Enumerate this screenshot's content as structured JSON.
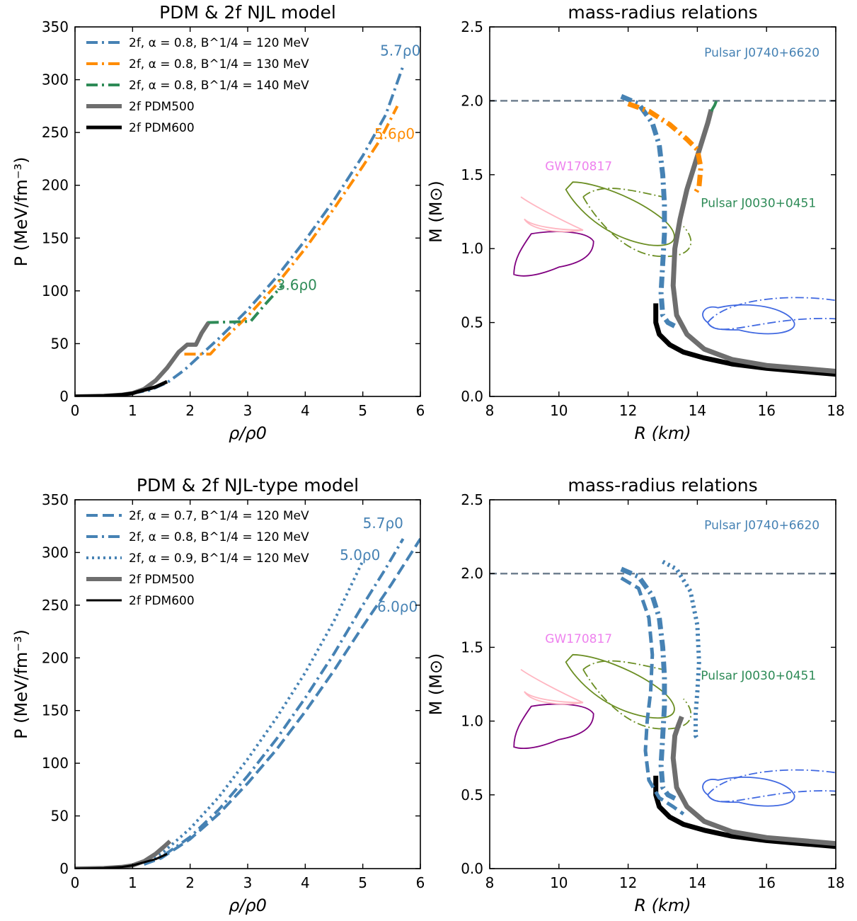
{
  "chart_data": [
    {
      "type": "line",
      "title": "PDM & 2f NJL model",
      "xlabel": "ρ/ρ0",
      "ylabel": "P (MeV/fm⁻³)",
      "xlim": [
        0,
        6
      ],
      "ylim": [
        0,
        350
      ],
      "xticks": [
        0,
        1,
        2,
        3,
        4,
        5,
        6
      ],
      "yticks": [
        0,
        50,
        100,
        150,
        200,
        250,
        300,
        350
      ],
      "legend_position": "top-left",
      "series": [
        {
          "name": "2f, α = 0.8, B^1/4 = 120 MeV",
          "color": "#4682b4",
          "style": "dashdot",
          "width": 4,
          "x": [
            1.0,
            1.3,
            1.6,
            1.9,
            2.2,
            2.5,
            3.0,
            3.5,
            4.0,
            4.5,
            5.0,
            5.4,
            5.7
          ],
          "y": [
            3,
            6,
            13,
            25,
            40,
            55,
            82,
            113,
            148,
            186,
            228,
            267,
            313
          ]
        },
        {
          "name": "2f, α = 0.8, B^1/4 = 130 MeV",
          "color": "#ff8c00",
          "style": "dashdot",
          "width": 4,
          "x": [
            1.9,
            2.35,
            2.6,
            3.0,
            3.5,
            4.0,
            4.5,
            5.0,
            5.3,
            5.6
          ],
          "y": [
            40,
            40,
            55,
            76,
            106,
            140,
            178,
            218,
            243,
            275
          ]
        },
        {
          "name": "2f, α = 0.8, B^1/4 = 140 MeV",
          "color": "#2e8b57",
          "style": "dashdot",
          "width": 4,
          "x": [
            2.3,
            3.05,
            3.3,
            3.6
          ],
          "y": [
            70,
            71,
            87,
            105
          ]
        },
        {
          "name": "2f PDM500",
          "color": "#6e6e6e",
          "style": "solid",
          "width": 6,
          "x": [
            0,
            0.5,
            0.8,
            1.0,
            1.2,
            1.4,
            1.6,
            1.8,
            1.95,
            2.1,
            2.2,
            2.32
          ],
          "y": [
            0,
            0.5,
            1.5,
            3,
            7,
            15,
            27,
            42,
            49,
            49,
            60,
            70
          ]
        },
        {
          "name": "2f PDM600",
          "color": "#000000",
          "style": "solid",
          "width": 5,
          "x": [
            0,
            0.5,
            0.8,
            1.0,
            1.2,
            1.4,
            1.6
          ],
          "y": [
            0,
            0.5,
            1.5,
            3,
            6,
            9,
            14
          ]
        }
      ],
      "annotations": [
        {
          "text": "5.7ρ0",
          "color": "#4682b4",
          "x": 5.3,
          "y": 323
        },
        {
          "text": "5.6ρ0",
          "color": "#ff8c00",
          "x": 5.2,
          "y": 244
        },
        {
          "text": "3.6ρ0",
          "color": "#2e8b57",
          "x": 3.5,
          "y": 101
        }
      ]
    },
    {
      "type": "line",
      "title": "mass-radius relations",
      "xlabel": "R (km)",
      "ylabel": "M (M⊙)",
      "xlim": [
        8,
        18
      ],
      "ylim": [
        0,
        2.5
      ],
      "xticks": [
        8,
        10,
        12,
        14,
        16,
        18
      ],
      "yticks": [
        0.0,
        0.5,
        1.0,
        1.5,
        2.0,
        2.5
      ],
      "reference_line": {
        "y": 2.0,
        "color": "#708090",
        "style": "dashed"
      },
      "series": [
        {
          "name": "2f PDM600",
          "color": "#000000",
          "style": "solid",
          "width": 7,
          "x": [
            12.8,
            12.8,
            12.9,
            13.2,
            13.6,
            14.2,
            15.0,
            16.0,
            17.0,
            18.0
          ],
          "y": [
            0.63,
            0.5,
            0.42,
            0.35,
            0.3,
            0.26,
            0.22,
            0.19,
            0.17,
            0.15
          ]
        },
        {
          "name": "2f PDM500",
          "color": "#6e6e6e",
          "style": "solid",
          "width": 7,
          "x": [
            18.0,
            17.0,
            16.0,
            15.0,
            14.2,
            13.7,
            13.4,
            13.3,
            13.35,
            13.5,
            13.7,
            13.9,
            14.1,
            14.3,
            14.4
          ],
          "y": [
            0.17,
            0.19,
            0.21,
            0.25,
            0.32,
            0.42,
            0.55,
            0.75,
            1.0,
            1.2,
            1.4,
            1.55,
            1.7,
            1.85,
            1.94
          ]
        },
        {
          "name": "2f, α = 0.8, B^1/4 = 120 MeV",
          "color": "#4682b4",
          "style": "dashdot",
          "width": 7,
          "x": [
            11.8,
            12.3,
            12.7,
            12.9,
            13.0,
            13.05,
            13.05,
            13.0,
            12.95,
            13.0,
            13.15,
            13.4
          ],
          "y": [
            2.03,
            1.98,
            1.85,
            1.7,
            1.5,
            1.3,
            1.1,
            0.9,
            0.7,
            0.55,
            0.5,
            0.47
          ]
        },
        {
          "name": "2f, α = 0.8, B^1/4 = 130 MeV",
          "color": "#ff8c00",
          "style": "dashdot",
          "width": 7,
          "x": [
            12.0,
            12.6,
            13.2,
            13.7,
            14.0,
            14.1,
            14.05,
            13.95
          ],
          "y": [
            1.98,
            1.93,
            1.84,
            1.74,
            1.67,
            1.55,
            1.42,
            1.38
          ]
        },
        {
          "name": "2f, α = 0.8, B^1/4 = 140 MeV",
          "color": "#2e8b57",
          "style": "dashdot",
          "width": 4,
          "x": [
            14.4,
            14.5,
            14.55,
            14.5
          ],
          "y": [
            1.93,
            1.97,
            2.0,
            2.0
          ]
        }
      ],
      "annotations": [
        {
          "text": "Pulsar J0740+6620",
          "color": "#4682b4",
          "x": 14.2,
          "y": 2.3
        },
        {
          "text": "GW170817",
          "color": "#ee82ee",
          "x": 9.6,
          "y": 1.53
        },
        {
          "text": "Pulsar J0030+0451",
          "color": "#2e8b57",
          "x": 14.1,
          "y": 1.28
        }
      ],
      "contours": [
        {
          "name": "Pulsar J0740+6620",
          "color": "#4169e1",
          "style": "solid"
        },
        {
          "name": "Pulsar J0740+6620",
          "color": "#4169e1",
          "style": "dashdot"
        },
        {
          "name": "GW170817",
          "color": "#800080",
          "style": "solid"
        },
        {
          "name": "GW170817",
          "color": "#ffb6c1",
          "style": "solid"
        },
        {
          "name": "Pulsar J0030+0451",
          "color": "#6b8e23",
          "style": "solid"
        },
        {
          "name": "Pulsar J0030+0451",
          "color": "#6b8e23",
          "style": "dashdot"
        }
      ]
    },
    {
      "type": "line",
      "title": "PDM & 2f NJL-type model",
      "xlabel": "ρ/ρ0",
      "ylabel": "P (MeV/fm⁻³)",
      "xlim": [
        0,
        6
      ],
      "ylim": [
        0,
        350
      ],
      "xticks": [
        0,
        1,
        2,
        3,
        4,
        5,
        6
      ],
      "yticks": [
        0,
        50,
        100,
        150,
        200,
        250,
        300,
        350
      ],
      "legend_position": "top-left",
      "series": [
        {
          "name": "2f, α = 0.7, B^1/4 = 120 MeV",
          "color": "#4682b4",
          "style": "dashed",
          "width": 4,
          "x": [
            1.2,
            1.5,
            2.0,
            2.5,
            3.0,
            3.5,
            4.0,
            4.5,
            5.0,
            5.5,
            6.0
          ],
          "y": [
            4,
            10,
            28,
            52,
            81,
            113,
            149,
            188,
            230,
            270,
            313
          ]
        },
        {
          "name": "2f, α = 0.8, B^1/4 = 120 MeV",
          "color": "#4682b4",
          "style": "dashdot",
          "width": 4,
          "x": [
            1.2,
            1.5,
            2.0,
            2.5,
            3.0,
            3.5,
            4.0,
            4.5,
            5.0,
            5.4,
            5.7
          ],
          "y": [
            4,
            11,
            30,
            56,
            88,
            123,
            162,
            204,
            250,
            285,
            313
          ]
        },
        {
          "name": "2f, α = 0.9, B^1/4 = 120 MeV",
          "color": "#4682b4",
          "style": "dotted",
          "width": 4,
          "x": [
            1.2,
            1.5,
            2.0,
            2.5,
            3.0,
            3.5,
            4.0,
            4.5,
            5.0
          ],
          "y": [
            5,
            14,
            38,
            68,
            104,
            143,
            186,
            235,
            292
          ]
        },
        {
          "name": "2f PDM500",
          "color": "#6e6e6e",
          "style": "solid",
          "width": 6,
          "x": [
            0,
            0.5,
            0.8,
            1.0,
            1.2,
            1.4,
            1.55,
            1.65
          ],
          "y": [
            0,
            0.5,
            1.5,
            3,
            7,
            14,
            21,
            26
          ]
        },
        {
          "name": "2f PDM600",
          "color": "#000000",
          "style": "solid",
          "width": 3,
          "x": [
            0,
            0.5,
            0.8,
            1.0,
            1.2,
            1.4,
            1.6
          ],
          "y": [
            0,
            0.5,
            1.5,
            3,
            6,
            9,
            14
          ]
        }
      ],
      "annotations": [
        {
          "text": "5.7ρ0",
          "color": "#4682b4",
          "x": 5.0,
          "y": 323
        },
        {
          "text": "5.0ρ0",
          "color": "#4682b4",
          "x": 4.6,
          "y": 293
        },
        {
          "text": "6.0ρ0",
          "color": "#4682b4",
          "x": 5.25,
          "y": 244
        }
      ]
    },
    {
      "type": "line",
      "title": "mass-radius relations",
      "xlabel": "R (km)",
      "ylabel": "M (M⊙)",
      "xlim": [
        8,
        18
      ],
      "ylim": [
        0,
        2.5
      ],
      "xticks": [
        8,
        10,
        12,
        14,
        16,
        18
      ],
      "yticks": [
        0.0,
        0.5,
        1.0,
        1.5,
        2.0,
        2.5
      ],
      "reference_line": {
        "y": 2.0,
        "color": "#708090",
        "style": "dashed"
      },
      "series": [
        {
          "name": "2f PDM600",
          "color": "#000000",
          "style": "solid",
          "width": 7,
          "x": [
            12.8,
            12.8,
            12.9,
            13.2,
            13.6,
            14.2,
            15.0,
            16.0,
            17.0,
            18.0
          ],
          "y": [
            0.63,
            0.5,
            0.42,
            0.35,
            0.3,
            0.26,
            0.22,
            0.19,
            0.17,
            0.15
          ]
        },
        {
          "name": "2f PDM500",
          "color": "#6e6e6e",
          "style": "solid",
          "width": 7,
          "x": [
            18.0,
            17.0,
            16.0,
            15.0,
            14.2,
            13.7,
            13.4,
            13.3,
            13.35,
            13.45,
            13.55
          ],
          "y": [
            0.17,
            0.19,
            0.21,
            0.25,
            0.32,
            0.42,
            0.55,
            0.75,
            0.9,
            0.97,
            1.03
          ]
        },
        {
          "name": "2f, α = 0.7, B^1/4 = 120 MeV",
          "color": "#4682b4",
          "style": "dashed",
          "width": 5,
          "x": [
            11.8,
            12.3,
            12.6,
            12.7,
            12.65,
            12.55,
            12.5,
            12.6,
            12.9,
            13.3,
            13.6
          ],
          "y": [
            1.97,
            1.9,
            1.7,
            1.45,
            1.2,
            1.0,
            0.8,
            0.6,
            0.48,
            0.42,
            0.37
          ]
        },
        {
          "name": "2f, α = 0.8, B^1/4 = 120 MeV",
          "color": "#4682b4",
          "style": "dashdot",
          "width": 7,
          "x": [
            11.8,
            12.3,
            12.7,
            12.9,
            13.0,
            13.05,
            13.05,
            13.0,
            12.95,
            13.0,
            13.15,
            13.4
          ],
          "y": [
            2.03,
            1.98,
            1.85,
            1.7,
            1.5,
            1.3,
            1.1,
            0.9,
            0.7,
            0.55,
            0.5,
            0.47
          ]
        },
        {
          "name": "2f, α = 0.9, B^1/4 = 120 MeV",
          "color": "#4682b4",
          "style": "dotted",
          "width": 6,
          "x": [
            13.0,
            13.4,
            13.8,
            14.0,
            14.05,
            14.0,
            13.95,
            13.95,
            14.0
          ],
          "y": [
            2.08,
            2.03,
            1.88,
            1.65,
            1.4,
            1.2,
            1.05,
            0.9,
            0.88
          ]
        }
      ],
      "annotations": [
        {
          "text": "Pulsar J0740+6620",
          "color": "#4682b4",
          "x": 14.2,
          "y": 2.3
        },
        {
          "text": "GW170817",
          "color": "#ee82ee",
          "x": 9.6,
          "y": 1.53
        },
        {
          "text": "Pulsar J0030+0451",
          "color": "#2e8b57",
          "x": 14.1,
          "y": 1.28
        }
      ],
      "contours": [
        {
          "name": "Pulsar J0740+6620",
          "color": "#4169e1",
          "style": "solid"
        },
        {
          "name": "Pulsar J0740+6620",
          "color": "#4169e1",
          "style": "dashdot"
        },
        {
          "name": "GW170817",
          "color": "#800080",
          "style": "solid"
        },
        {
          "name": "GW170817",
          "color": "#ffb6c1",
          "style": "solid"
        },
        {
          "name": "Pulsar J0030+0451",
          "color": "#6b8e23",
          "style": "solid"
        },
        {
          "name": "Pulsar J0030+0451",
          "color": "#6b8e23",
          "style": "dashdot"
        }
      ]
    }
  ]
}
